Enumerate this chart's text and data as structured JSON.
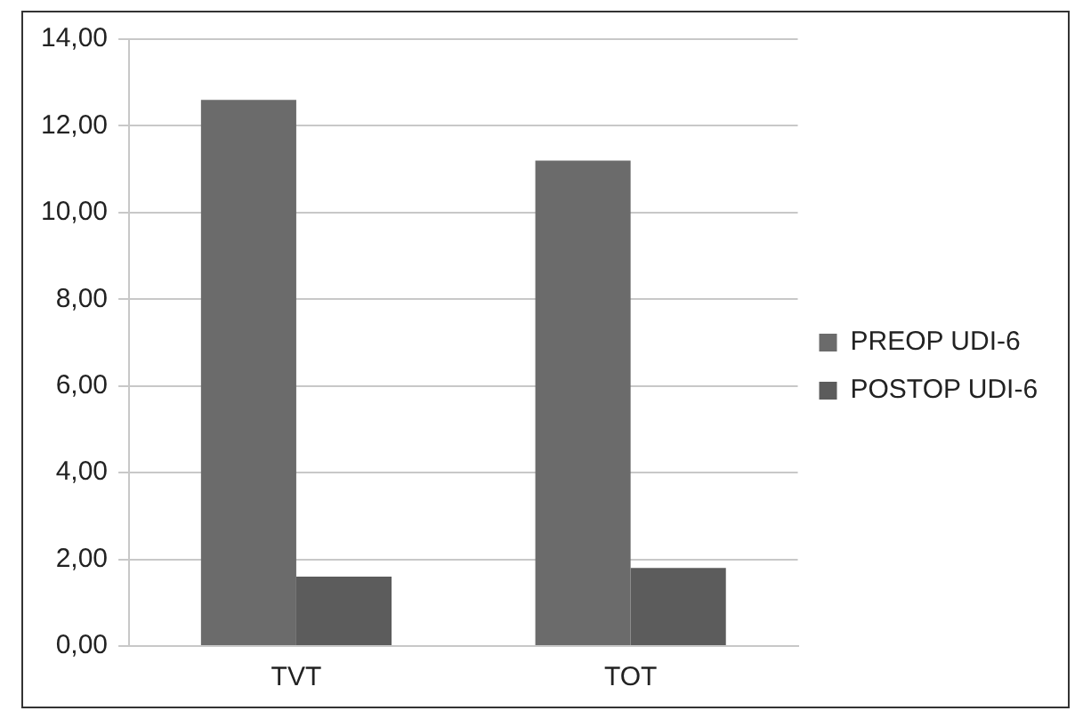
{
  "chart_data": {
    "type": "bar",
    "categories": [
      "TVT",
      "TOT"
    ],
    "series": [
      {
        "name": "PREOP UDI-6",
        "color": "#6b6b6b",
        "values": [
          12.6,
          11.2
        ]
      },
      {
        "name": "POSTOP UDI-6",
        "color": "#5c5c5c",
        "values": [
          1.6,
          1.8
        ]
      }
    ],
    "ylim": [
      0,
      14
    ],
    "yticks": [
      {
        "value": 0,
        "label": "0,00"
      },
      {
        "value": 2,
        "label": "2,00"
      },
      {
        "value": 4,
        "label": "4,00"
      },
      {
        "value": 6,
        "label": "6,00"
      },
      {
        "value": 8,
        "label": "8,00"
      },
      {
        "value": 10,
        "label": "10,00"
      },
      {
        "value": 12,
        "label": "12,00"
      },
      {
        "value": 14,
        "label": "14,00"
      }
    ],
    "grid": "y",
    "legend": "right"
  }
}
